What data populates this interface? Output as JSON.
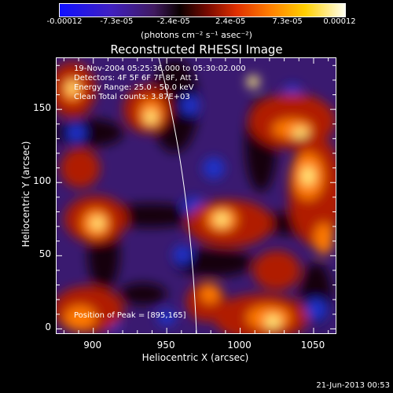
{
  "chart_data": {
    "type": "heatmap",
    "title": "Reconstructed RHESSI Image",
    "xlabel": "Heliocentric X (arcsec)",
    "ylabel": "Heliocentric Y (arcsec)",
    "xlim": [
      875,
      1065
    ],
    "ylim": [
      -3,
      185
    ],
    "xticks": [
      "900",
      "950",
      "1000",
      "1050"
    ],
    "yticks": [
      "0",
      "50",
      "100",
      "150"
    ],
    "colorbar": {
      "ticks": [
        "-0.00012",
        "-7.3e-05",
        "-2.4e-05",
        "2.4e-05",
        "7.3e-05",
        "0.00012"
      ],
      "units": "(photons cm⁻² s⁻¹ asec⁻²)",
      "range": [
        -0.00012,
        0.00012
      ]
    },
    "annotations": {
      "time": "19-Nov-2004 05:25:36.000 to 05:30:02.000",
      "detectors": "Detectors: 4F 5F 6F 7F 8F, Att 1",
      "energy": "Energy Range: 25.0 - 50.0 keV",
      "method": "Clean     Total counts: 3.87E+03",
      "peak": "Position of Peak = [895,165]"
    },
    "colors": {
      "background": "#3a1a70",
      "hot": "#ff8000",
      "cold": "#1830c0"
    }
  },
  "footer_timestamp": "21-Jun-2013 00:53"
}
